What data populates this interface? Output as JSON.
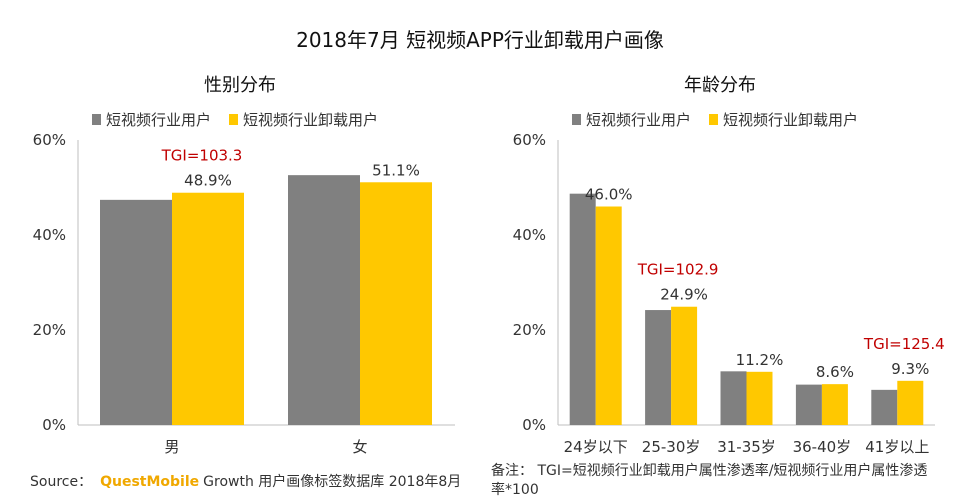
{
  "title": "2018年7月 短视频APP行业卸载用户画像",
  "colors": {
    "series1": "#808080",
    "series2": "#FFC800",
    "tgi": "#C00000",
    "axis": "#bfbfbf"
  },
  "chart_data": [
    {
      "type": "bar",
      "title": "性别分布",
      "categories": [
        "男",
        "女"
      ],
      "series": [
        {
          "name": "短视频行业用户",
          "values": [
            47.4,
            52.6
          ]
        },
        {
          "name": "短视频行业卸载用户",
          "values": [
            48.9,
            51.1
          ]
        }
      ],
      "data_labels": [
        "48.9%",
        "51.1%"
      ],
      "annotations": [
        {
          "category": "男",
          "text": "TGI=103.3"
        }
      ],
      "yticks": [
        "60%",
        "40%",
        "20%",
        "0%"
      ],
      "ylim": [
        0,
        60
      ],
      "legend": "top-left"
    },
    {
      "type": "bar",
      "title": "年龄分布",
      "categories": [
        "24岁以下",
        "25-30岁",
        "31-35岁",
        "36-40岁",
        "41岁以上"
      ],
      "series": [
        {
          "name": "短视频行业用户",
          "values": [
            48.7,
            24.2,
            11.3,
            8.5,
            7.4
          ]
        },
        {
          "name": "短视频行业卸载用户",
          "values": [
            46.0,
            24.9,
            11.2,
            8.6,
            9.3
          ]
        }
      ],
      "data_labels": [
        "46.0%",
        "24.9%",
        "11.2%",
        "8.6%",
        "9.3%"
      ],
      "annotations": [
        {
          "category": "25-30岁",
          "text": "TGI=102.9"
        },
        {
          "category": "41岁以上",
          "text": "TGI=125.4"
        }
      ],
      "yticks": [
        "60%",
        "40%",
        "20%",
        "0%"
      ],
      "ylim": [
        0,
        60
      ],
      "legend": "top-left"
    }
  ],
  "footer": {
    "source_label": "Source：",
    "source_brand": "QuestMobile",
    "source_text": "Growth 用户画像标签数据库 2018年8月",
    "note": "备注：  TGI=短视频行业卸载用户属性渗透率/短视频行业用户属性渗透率*100"
  }
}
